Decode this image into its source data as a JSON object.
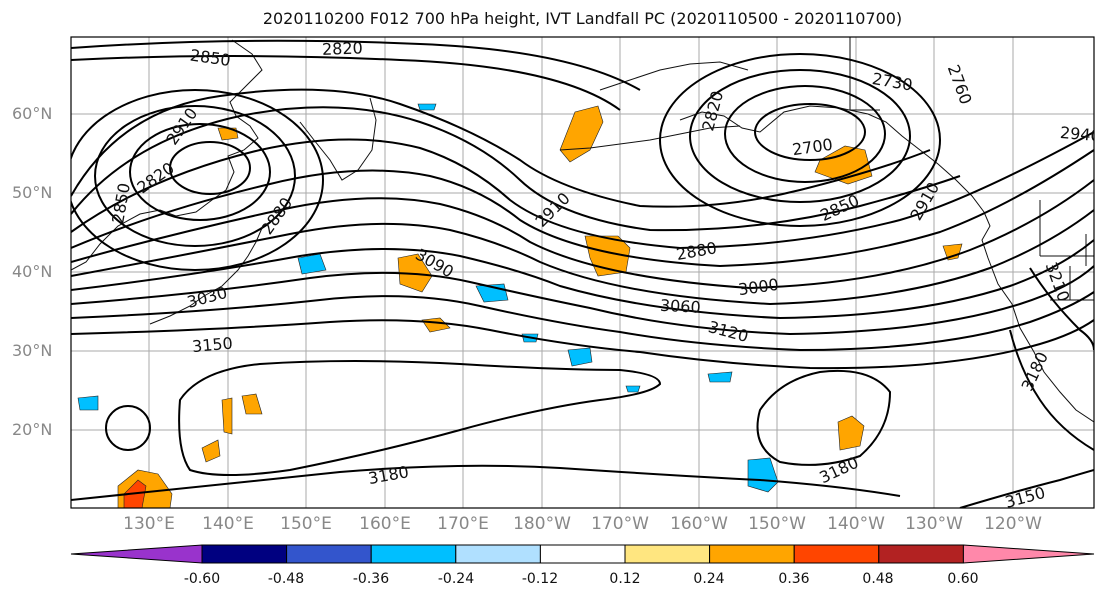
{
  "title": "2020110200 F012 700 hPa height, IVT Landfall PC (2020110500 - 2020110700)",
  "axes": {
    "lat_ticks": [
      "60°N",
      "50°N",
      "40°N",
      "30°N",
      "20°N"
    ],
    "lon_ticks": [
      "130°E",
      "140°E",
      "150°E",
      "160°E",
      "170°E",
      "180°W",
      "170°W",
      "160°W",
      "150°W",
      "140°W",
      "130°W",
      "120°W"
    ]
  },
  "colorbar": {
    "colors": [
      "#9933cc",
      "#000080",
      "#3355cc",
      "#00bfff",
      "#b0e0ff",
      "#ffffff",
      "#ffe680",
      "#ffa500",
      "#ff4500",
      "#b22222",
      "#ff88aa"
    ],
    "tick_labels": [
      "-0.60",
      "-0.48",
      "-0.36",
      "-0.24",
      "-0.12",
      "0.12",
      "0.24",
      "0.36",
      "0.48",
      "0.60"
    ]
  },
  "contour_labels": [
    "2850",
    "2820",
    "2910",
    "2820",
    "2850",
    "2880",
    "3030",
    "3090",
    "3150",
    "2910",
    "2820",
    "2730",
    "2760",
    "2700",
    "2850",
    "2910",
    "2880",
    "3000",
    "3060",
    "3120",
    "2940",
    "3210",
    "3180",
    "3180",
    "3180",
    "3150"
  ]
}
